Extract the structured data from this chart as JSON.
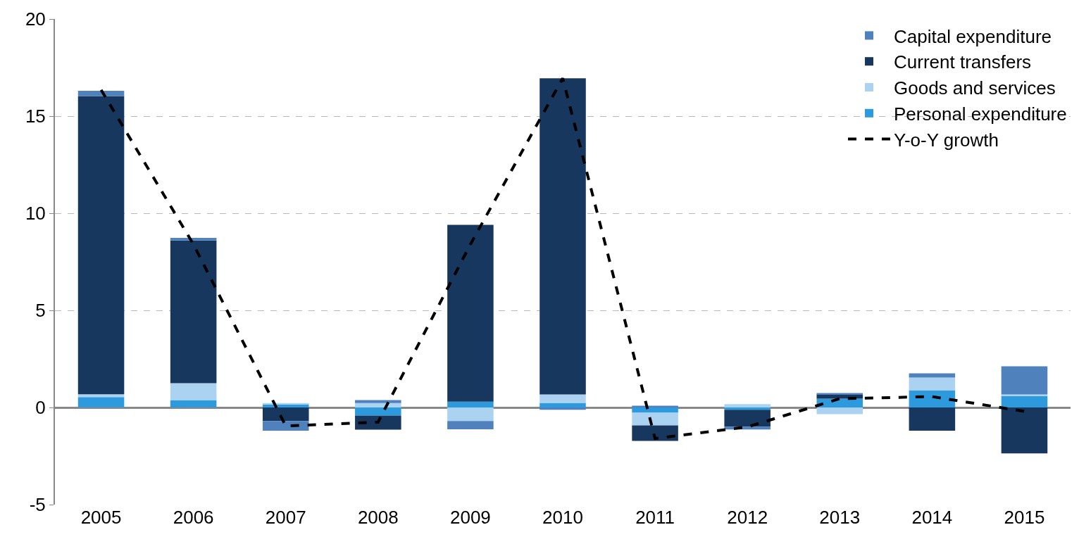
{
  "chart_data": {
    "type": "bar",
    "stacked": true,
    "categories": [
      "2005",
      "2006",
      "2007",
      "2008",
      "2009",
      "2010",
      "2011",
      "2012",
      "2013",
      "2014",
      "2015"
    ],
    "series": [
      {
        "name": "Personal expenditure",
        "color": "#2e9ade",
        "values": [
          0.53,
          0.38,
          0.16,
          -0.42,
          0.3,
          0.24,
          -0.27,
          -0.12,
          0.45,
          0.89,
          0.6
        ]
      },
      {
        "name": "Goods and services",
        "color": "#abd3f1",
        "values": [
          0.15,
          0.87,
          0.07,
          0.23,
          -0.7,
          0.43,
          -0.65,
          0.17,
          -0.34,
          0.65,
          0.07
        ]
      },
      {
        "name": "Current transfers",
        "color": "#17375e",
        "values": [
          15.35,
          7.35,
          -0.7,
          -0.72,
          9.1,
          16.28,
          -0.8,
          -0.87,
          0.22,
          -1.2,
          -2.36
        ]
      },
      {
        "name": "Capital expenditure",
        "color": "#4f81bd",
        "values": [
          0.27,
          0.13,
          -0.5,
          0.15,
          -0.42,
          -0.12,
          0.09,
          -0.14,
          0.07,
          0.22,
          1.45
        ]
      },
      {
        "name": "Y-o-Y growth",
        "type": "line",
        "color": "#000000",
        "line_style": "dashed",
        "marker": "none",
        "values": [
          16.35,
          8.4,
          -0.95,
          -0.75,
          8.4,
          16.95,
          -1.6,
          -1.0,
          0.45,
          0.56,
          -0.2
        ]
      }
    ],
    "ylim": [
      -5,
      20
    ],
    "yticks": [
      -5,
      0,
      5,
      10,
      15,
      20
    ],
    "grid": "y",
    "legend": "top right"
  }
}
